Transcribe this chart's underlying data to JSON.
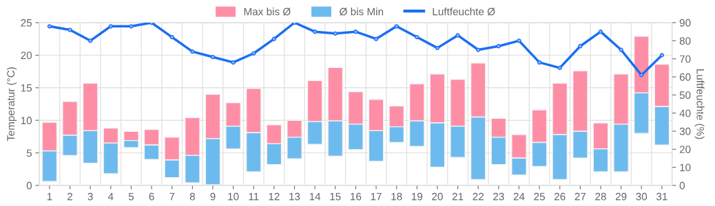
{
  "chart_data": {
    "type": "bar",
    "categories": [
      "1",
      "2",
      "3",
      "4",
      "5",
      "6",
      "7",
      "8",
      "9",
      "10",
      "11",
      "12",
      "13",
      "14",
      "15",
      "16",
      "17",
      "18",
      "19",
      "20",
      "21",
      "22",
      "23",
      "24",
      "25",
      "26",
      "27",
      "28",
      "29",
      "30",
      "31"
    ],
    "series": [
      {
        "name": "Max bis Ø",
        "color": "#fe8ea6",
        "base": [
          5.3,
          7.7,
          8.4,
          6.5,
          6.9,
          6.2,
          3.9,
          4.6,
          7.2,
          9.1,
          8.1,
          6.4,
          7.4,
          9.8,
          9.9,
          9.4,
          8.4,
          9.0,
          9.9,
          9.6,
          9.1,
          10.5,
          7.4,
          4.2,
          6.6,
          7.8,
          8.3,
          5.6,
          9.4,
          14.2,
          12.1
        ],
        "values": [
          4.4,
          5.2,
          7.3,
          2.3,
          1.4,
          2.4,
          3.5,
          5.8,
          6.8,
          3.6,
          6.8,
          2.9,
          2.6,
          6.3,
          8.2,
          5.0,
          4.8,
          3.2,
          5.7,
          7.5,
          7.2,
          8.3,
          2.9,
          3.6,
          5.0,
          7.9,
          9.3,
          4.0,
          7.7,
          8.7,
          6.5
        ]
      },
      {
        "name": "Ø bis Min",
        "color": "#6dbbee",
        "base": [
          0.6,
          4.6,
          3.4,
          1.8,
          5.8,
          4.0,
          1.2,
          0.4,
          0.1,
          5.6,
          2.1,
          3.2,
          4.1,
          6.3,
          4.5,
          5.5,
          3.7,
          6.6,
          6.0,
          2.8,
          4.3,
          0.9,
          3.2,
          1.6,
          2.9,
          0.9,
          4.2,
          2.1,
          2.1,
          8.0,
          6.2
        ],
        "values": [
          4.7,
          3.1,
          5.0,
          4.7,
          1.1,
          2.2,
          2.7,
          4.2,
          7.1,
          3.5,
          6.0,
          3.2,
          3.3,
          3.5,
          5.4,
          3.9,
          4.7,
          2.4,
          3.9,
          6.8,
          4.8,
          9.6,
          4.2,
          2.6,
          3.7,
          6.9,
          4.1,
          3.5,
          7.3,
          6.2,
          5.9
        ]
      },
      {
        "name": "Luftfeuchte Ø",
        "type": "line",
        "axis": "y2",
        "color": "#1a6ef2",
        "marker": "circle",
        "values": [
          88,
          86,
          80,
          88,
          88,
          90,
          82,
          74,
          71,
          68,
          73,
          81,
          90,
          85,
          84,
          85,
          81,
          88,
          82,
          76,
          83,
          75,
          77,
          80,
          68,
          65,
          77,
          85,
          75,
          61,
          72
        ]
      }
    ],
    "ylabel": "Temperatur (°C)",
    "y2label": "Luftfeuchte (%)",
    "ylim": [
      0,
      25
    ],
    "yticks": [
      0,
      5,
      10,
      15,
      20,
      25
    ],
    "y2lim": [
      0,
      90
    ],
    "y2ticks": [
      0,
      10,
      20,
      30,
      40,
      50,
      60,
      70,
      80,
      90
    ],
    "grid": true,
    "legend": "top"
  }
}
